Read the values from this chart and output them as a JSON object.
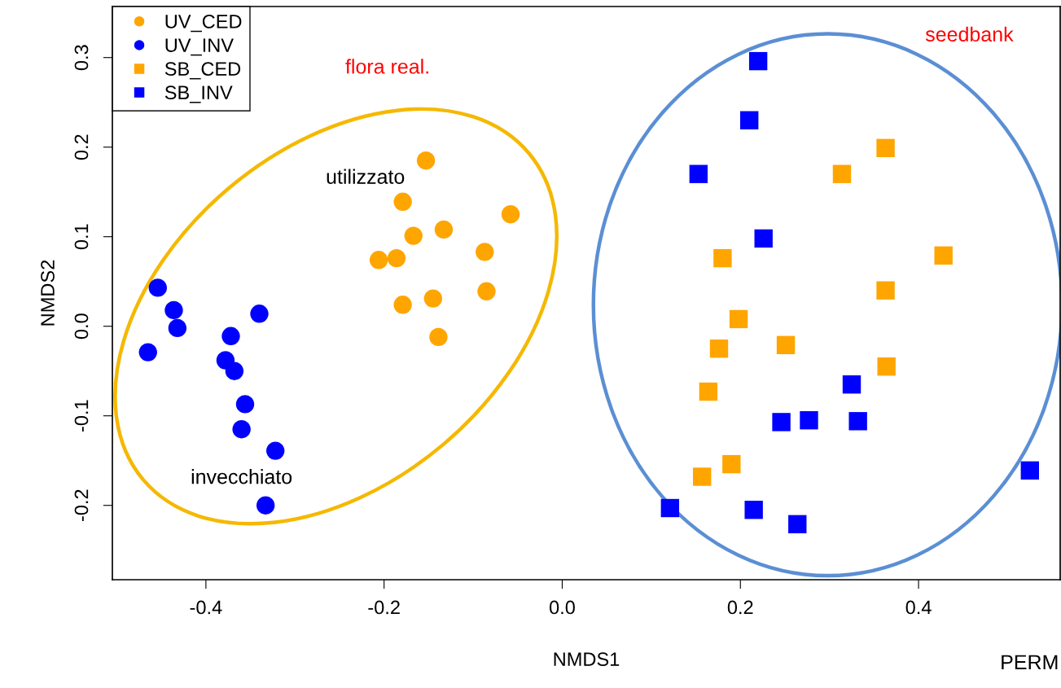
{
  "chart_data": {
    "type": "scatter",
    "xlabel": "NMDS1",
    "ylabel": "NMDS2",
    "xlim": [
      -0.505,
      0.559
    ],
    "ylim": [
      -0.283,
      0.357
    ],
    "xticks": [
      {
        "value": -0.4,
        "label": "-0.4"
      },
      {
        "value": -0.2,
        "label": "-0.2"
      },
      {
        "value": 0.0,
        "label": "0.0"
      },
      {
        "value": 0.2,
        "label": "0.2"
      },
      {
        "value": 0.4,
        "label": "0.4"
      }
    ],
    "yticks": [
      {
        "value": -0.2,
        "label": "-0.2"
      },
      {
        "value": -0.1,
        "label": "-0.1"
      },
      {
        "value": 0.0,
        "label": "0.0"
      },
      {
        "value": 0.1,
        "label": "0.1"
      },
      {
        "value": 0.2,
        "label": "0.2"
      },
      {
        "value": 0.3,
        "label": "0.3"
      }
    ],
    "grid": false,
    "legend": "top left",
    "series": [
      {
        "name": "UV_CED",
        "color": "#ffa500",
        "marker": "circle",
        "x": [
          -0.153,
          -0.179,
          -0.058,
          -0.167,
          -0.133,
          -0.206,
          -0.186,
          -0.087,
          -0.085,
          -0.179,
          -0.145,
          -0.139
        ],
        "values": [
          0.185,
          0.139,
          0.125,
          0.101,
          0.108,
          0.074,
          0.076,
          0.083,
          0.039,
          0.024,
          0.031,
          -0.012
        ]
      },
      {
        "name": "UV_INV",
        "color": "#0000ff",
        "marker": "circle",
        "x": [
          -0.454,
          -0.436,
          -0.432,
          -0.465,
          -0.34,
          -0.372,
          -0.378,
          -0.368,
          -0.356,
          -0.36,
          -0.322,
          -0.333
        ],
        "values": [
          0.043,
          0.018,
          -0.002,
          -0.029,
          0.014,
          -0.011,
          -0.038,
          -0.05,
          -0.087,
          -0.115,
          -0.139,
          -0.2
        ]
      },
      {
        "name": "SB_CED",
        "color": "#ffa500",
        "marker": "square",
        "x": [
          0.363,
          0.314,
          0.428,
          0.18,
          0.363,
          0.198,
          0.176,
          0.251,
          0.364,
          0.164,
          0.19,
          0.157
        ],
        "values": [
          0.199,
          0.17,
          0.079,
          0.076,
          0.04,
          0.008,
          -0.025,
          -0.021,
          -0.045,
          -0.073,
          -0.154,
          -0.168
        ]
      },
      {
        "name": "SB_INV",
        "color": "#0000ff",
        "marker": "square",
        "x": [
          0.22,
          0.21,
          0.153,
          0.226,
          0.325,
          0.246,
          0.277,
          0.332,
          0.525,
          0.121,
          0.215,
          0.264
        ],
        "values": [
          0.296,
          0.23,
          0.17,
          0.098,
          -0.065,
          -0.107,
          -0.105,
          -0.106,
          -0.161,
          -0.203,
          -0.205,
          -0.221
        ]
      }
    ],
    "annotations": [
      "flora real.",
      "seedbank",
      "utilizzato",
      "invecchiato",
      "PERM"
    ]
  }
}
